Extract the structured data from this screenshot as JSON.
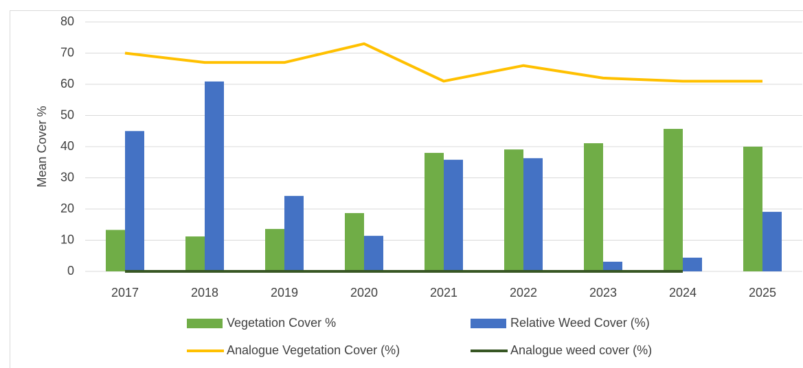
{
  "chart_data": {
    "type": "bar",
    "y_label": "Mean Cover %",
    "categories": [
      "2017",
      "2018",
      "2019",
      "2020",
      "2021",
      "2022",
      "2023",
      "2024",
      "2025"
    ],
    "series": [
      {
        "name": "Vegetation Cover %",
        "type": "bar",
        "color": "#70ad47",
        "values": [
          13.3,
          11.2,
          13.6,
          18.7,
          38,
          39.1,
          41.1,
          45.7,
          40
        ]
      },
      {
        "name": "Relative Weed Cover (%)",
        "type": "bar",
        "color": "#4472c4",
        "values": [
          45,
          60.9,
          24.2,
          11.4,
          35.8,
          36.3,
          3.1,
          4.4,
          19.1
        ]
      },
      {
        "name": "Analogue Vegetation Cover (%)",
        "type": "line",
        "color": "#ffc000",
        "values": [
          70,
          67,
          67,
          73,
          61,
          66,
          62,
          61,
          61
        ]
      },
      {
        "name": "Analogue weed cover (%)",
        "type": "line",
        "color": "#375623",
        "values": [
          0,
          0,
          0,
          0,
          0,
          0,
          0,
          0,
          null
        ]
      }
    ],
    "ylim": [
      0,
      80
    ],
    "yticks": [
      0,
      10,
      20,
      30,
      40,
      50,
      60,
      70,
      80
    ],
    "grid": true
  }
}
